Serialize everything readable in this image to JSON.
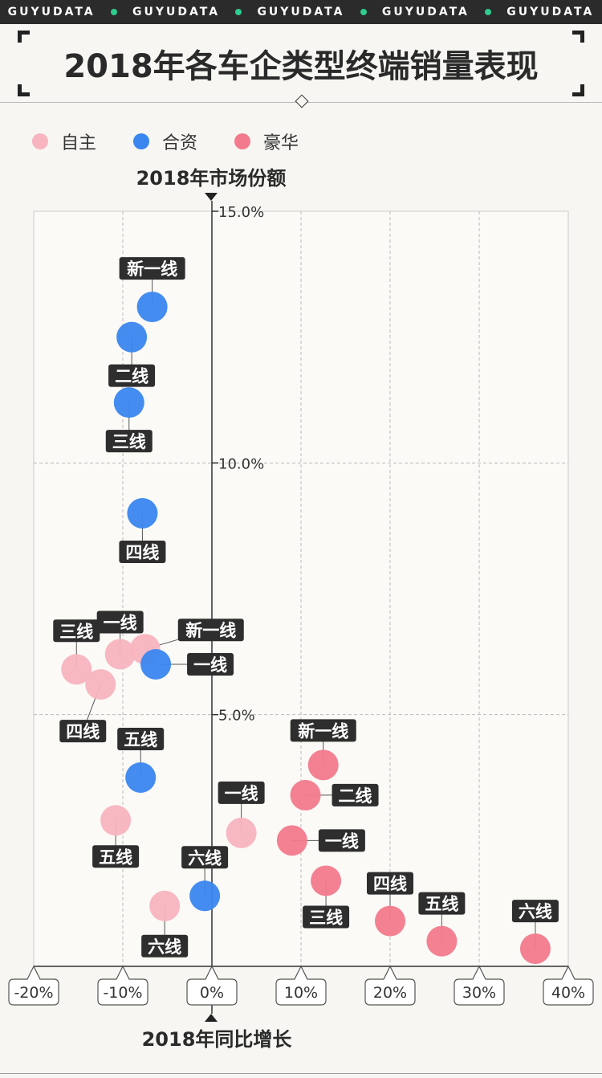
{
  "brand_strip": [
    "GUYUDATA",
    "GUYUDATA",
    "GUYUDATA",
    "GUYUDATA",
    "GUYUDATA"
  ],
  "page_title": "2018年各车企类型终端销量表现",
  "legend": [
    {
      "name": "自主",
      "color": "#f8b4bf"
    },
    {
      "name": "合资",
      "color": "#3a86ef"
    },
    {
      "name": "豪华",
      "color": "#f37a8c"
    }
  ],
  "chart_data": {
    "type": "scatter",
    "ylabel": "2018年市场份额",
    "xlabel": "2018年同比增长",
    "xlim": [
      -20,
      40
    ],
    "ylim": [
      0,
      15
    ],
    "x_ticks": [
      "-20%",
      "-10%",
      "0%",
      "10%",
      "20%",
      "30%",
      "40%"
    ],
    "x_tick_values": [
      -20,
      -10,
      0,
      10,
      20,
      30,
      40
    ],
    "y_ticks": [
      "5.0%",
      "10.0%",
      "15.0%"
    ],
    "y_tick_values": [
      5,
      10,
      15
    ],
    "grid": true,
    "series": [
      {
        "name": "自主",
        "color": "#f8b4bf",
        "points": [
          {
            "label": "新一线",
            "x": -7.5,
            "y": 6.3
          },
          {
            "label": "一线",
            "x": -10.3,
            "y": 6.2
          },
          {
            "label": "三线",
            "x": -15.2,
            "y": 5.9
          },
          {
            "label": "四线",
            "x": -12.5,
            "y": 5.6
          },
          {
            "label": "五线",
            "x": -10.8,
            "y": 2.9
          },
          {
            "label": "一线",
            "x": 3.3,
            "y": 2.65
          },
          {
            "label": "六线",
            "x": -5.3,
            "y": 1.2
          }
        ]
      },
      {
        "name": "合资",
        "color": "#3a86ef",
        "points": [
          {
            "label": "新一线",
            "x": -6.7,
            "y": 13.1
          },
          {
            "label": "二线",
            "x": -9.0,
            "y": 12.5
          },
          {
            "label": "三线",
            "x": -9.3,
            "y": 11.2
          },
          {
            "label": "四线",
            "x": -7.8,
            "y": 9.0
          },
          {
            "label": "一线",
            "x": -6.3,
            "y": 6.0
          },
          {
            "label": "五线",
            "x": -8.0,
            "y": 3.75
          },
          {
            "label": "六线",
            "x": -0.8,
            "y": 1.4
          }
        ]
      },
      {
        "name": "豪华",
        "color": "#f37a8c",
        "points": [
          {
            "label": "新一线",
            "x": 12.5,
            "y": 4.0
          },
          {
            "label": "二线",
            "x": 10.5,
            "y": 3.4
          },
          {
            "label": "一线",
            "x": 9.0,
            "y": 2.5
          },
          {
            "label": "三线",
            "x": 12.8,
            "y": 1.7
          },
          {
            "label": "四线",
            "x": 20.0,
            "y": 0.9
          },
          {
            "label": "五线",
            "x": 25.8,
            "y": 0.5
          },
          {
            "label": "六线",
            "x": 36.3,
            "y": 0.35
          }
        ]
      }
    ]
  }
}
